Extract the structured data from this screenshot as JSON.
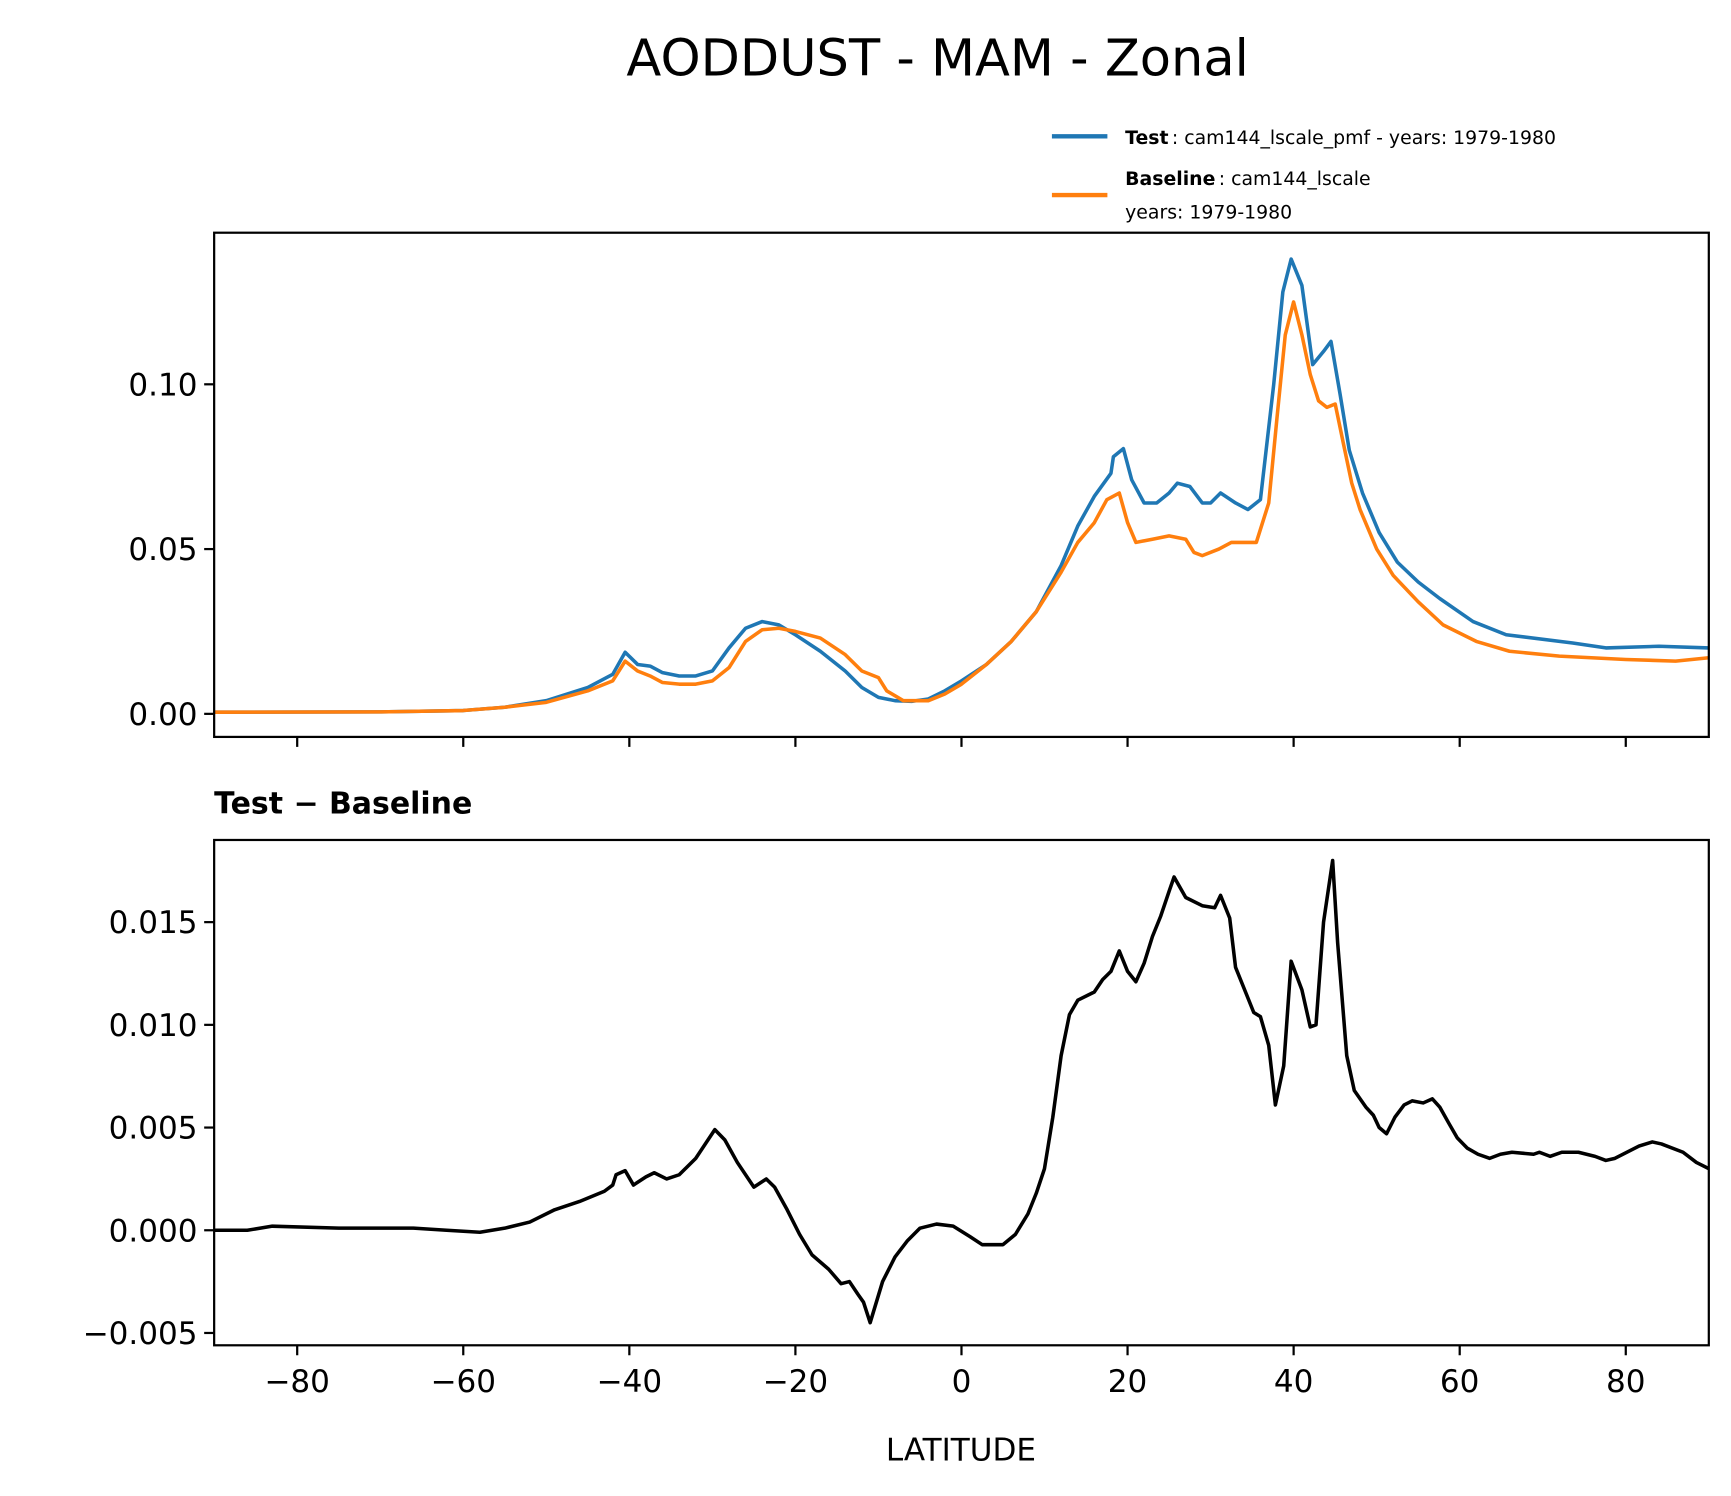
{
  "chart_data": [
    {
      "type": "line",
      "title": "AODDUST - MAM - Zonal",
      "xlabel": "",
      "ylabel": "",
      "xlim": [
        -90,
        90
      ],
      "ylim": [
        -0.007,
        0.146
      ],
      "xticks": [
        -80,
        -60,
        -40,
        -20,
        0,
        20,
        40,
        60,
        80
      ],
      "yticks": [
        0.0,
        0.05,
        0.1
      ],
      "ytick_labels": [
        "0.00",
        "0.05",
        "0.10"
      ],
      "legend": {
        "placement": "above-right",
        "entries": [
          {
            "bold": "Test",
            "text": ": cam144_lscale_pmf - years: 1979-1980",
            "text2": ""
          },
          {
            "bold": "Baseline",
            "text": ": cam144_lscale",
            "text2": "years: 1979-1980"
          }
        ]
      },
      "series": [
        {
          "name": "Test",
          "color": "#1f77b4",
          "x": [
            -90,
            -70,
            -60,
            -55,
            -50,
            -45,
            -42,
            -40.5,
            -39,
            -37.5,
            -36,
            -34,
            -32,
            -30,
            -28,
            -26,
            -24,
            -22,
            -20,
            -17,
            -14,
            -12,
            -10,
            -8,
            -6,
            -4,
            -2,
            0,
            3,
            6,
            9,
            12,
            14,
            16,
            18,
            18.3,
            19.5,
            20.5,
            22,
            23.5,
            25,
            26,
            27.5,
            29,
            30,
            31.2,
            33,
            34.5,
            36,
            37.6,
            38.7,
            39.7,
            41,
            42.3,
            43.6,
            44.5,
            45.6,
            46.7,
            48.3,
            50.3,
            52.5,
            55,
            57.6,
            61.6,
            65.6,
            73.6,
            77.6,
            84,
            90
          ],
          "y": [
            0.0005,
            0.0006,
            0.001,
            0.002,
            0.004,
            0.008,
            0.012,
            0.0187,
            0.015,
            0.0145,
            0.0125,
            0.0115,
            0.0115,
            0.013,
            0.02,
            0.026,
            0.028,
            0.027,
            0.024,
            0.019,
            0.013,
            0.008,
            0.005,
            0.004,
            0.0038,
            0.0045,
            0.007,
            0.01,
            0.015,
            0.022,
            0.031,
            0.045,
            0.057,
            0.066,
            0.073,
            0.078,
            0.0805,
            0.071,
            0.064,
            0.064,
            0.067,
            0.07,
            0.069,
            0.064,
            0.064,
            0.067,
            0.064,
            0.062,
            0.065,
            0.1,
            0.128,
            0.138,
            0.13,
            0.106,
            0.11,
            0.113,
            0.097,
            0.08,
            0.067,
            0.055,
            0.046,
            0.04,
            0.035,
            0.028,
            0.024,
            0.0215,
            0.02,
            0.0205,
            0.02
          ]
        },
        {
          "name": "Baseline",
          "color": "#ff7f0e",
          "x": [
            -90,
            -70,
            -60,
            -55,
            -50,
            -45,
            -42,
            -40.5,
            -39,
            -37.5,
            -36,
            -34,
            -32,
            -30,
            -28,
            -26,
            -24,
            -22,
            -20,
            -17,
            -14,
            -12,
            -10,
            -9,
            -7,
            -4,
            -2,
            0,
            3,
            6,
            9,
            12,
            14,
            16,
            17.5,
            19,
            20,
            21,
            23,
            25,
            27,
            28,
            29,
            31,
            32.5,
            34,
            35.5,
            37,
            38,
            39,
            40,
            41,
            42,
            43,
            44,
            45,
            46,
            47,
            48,
            50,
            52,
            55,
            58,
            62,
            66,
            72,
            80,
            86,
            90
          ],
          "y": [
            0.0005,
            0.0006,
            0.001,
            0.002,
            0.0035,
            0.007,
            0.01,
            0.016,
            0.013,
            0.0115,
            0.0095,
            0.009,
            0.009,
            0.01,
            0.014,
            0.022,
            0.0255,
            0.026,
            0.025,
            0.023,
            0.018,
            0.013,
            0.011,
            0.007,
            0.004,
            0.004,
            0.006,
            0.009,
            0.015,
            0.022,
            0.031,
            0.043,
            0.052,
            0.058,
            0.065,
            0.067,
            0.058,
            0.052,
            0.053,
            0.054,
            0.053,
            0.049,
            0.048,
            0.05,
            0.052,
            0.052,
            0.052,
            0.064,
            0.09,
            0.115,
            0.125,
            0.115,
            0.103,
            0.095,
            0.093,
            0.094,
            0.082,
            0.07,
            0.062,
            0.05,
            0.042,
            0.034,
            0.027,
            0.022,
            0.019,
            0.0175,
            0.0165,
            0.016,
            0.017
          ]
        }
      ]
    },
    {
      "type": "line",
      "title": "Test − Baseline",
      "xlabel": "LATITUDE",
      "ylabel": "",
      "xlim": [
        -90,
        90
      ],
      "ylim": [
        -0.0056,
        0.019
      ],
      "xticks": [
        -80,
        -60,
        -40,
        -20,
        0,
        20,
        40,
        60,
        80
      ],
      "xtick_labels": [
        "−80",
        "−60",
        "−40",
        "−20",
        "0",
        "20",
        "40",
        "60",
        "80"
      ],
      "yticks": [
        -0.005,
        0.0,
        0.005,
        0.01,
        0.015
      ],
      "ytick_labels": [
        "−0.005",
        "0.000",
        "0.005",
        "0.010",
        "0.015"
      ],
      "series": [
        {
          "name": "Test - Baseline",
          "color": "#000000",
          "x": [
            -90,
            -86,
            -83,
            -75,
            -66,
            -62,
            -58,
            -55,
            -52,
            -49,
            -46,
            -43,
            -42,
            -41.6,
            -40.5,
            -39.5,
            -38,
            -37,
            -35.5,
            -34,
            -32,
            -29.7,
            -28.5,
            -27,
            -25,
            -23.5,
            -22.5,
            -21,
            -19.5,
            -18,
            -16,
            -14.5,
            -13.5,
            -12.5,
            -11.8,
            -11,
            -9.5,
            -8,
            -6.5,
            -5,
            -3,
            -1,
            1,
            2.5,
            5,
            6.5,
            8,
            9,
            10,
            11,
            12,
            13,
            14,
            16,
            17,
            18,
            19,
            20,
            21,
            22,
            23,
            24,
            25,
            25.6,
            27,
            29,
            30.5,
            31.2,
            32.3,
            33,
            34.3,
            35.2,
            36,
            37,
            37.8,
            38.8,
            39.7,
            41,
            42,
            42.7,
            43.6,
            44.7,
            45.3,
            46.4,
            47.3,
            48.7,
            49.6,
            50.3,
            51.2,
            52.2,
            53.3,
            54.3,
            55.6,
            56.7,
            57.6,
            58.7,
            59.7,
            60.9,
            62.2,
            63.6,
            64.9,
            66.3,
            68.9,
            69.6,
            70.9,
            72.3,
            74.3,
            76.3,
            77.6,
            78.7,
            81.6,
            83.2,
            84.3,
            86.9,
            88.5,
            90
          ],
          "y": [
            0,
            0,
            0.0002,
            0.0001,
            0.0001,
            0,
            -0.0001,
            0.0001,
            0.0004,
            0.001,
            0.0014,
            0.0019,
            0.0022,
            0.0027,
            0.0029,
            0.0022,
            0.0026,
            0.0028,
            0.0025,
            0.0027,
            0.0035,
            0.0049,
            0.0044,
            0.0033,
            0.0021,
            0.0025,
            0.0021,
            0.001,
            -0.0002,
            -0.0012,
            -0.0019,
            -0.0026,
            -0.0025,
            -0.0031,
            -0.0035,
            -0.0045,
            -0.0025,
            -0.0013,
            -0.0005,
            0.0001,
            0.0003,
            0.0002,
            -0.0003,
            -0.0007,
            -0.0007,
            -0.0002,
            0.0008,
            0.0018,
            0.003,
            0.0055,
            0.0085,
            0.0105,
            0.0112,
            0.0116,
            0.0122,
            0.0126,
            0.0136,
            0.0126,
            0.0121,
            0.013,
            0.0143,
            0.0153,
            0.0165,
            0.0172,
            0.0162,
            0.0158,
            0.0157,
            0.0163,
            0.0152,
            0.0128,
            0.0115,
            0.0106,
            0.0104,
            0.009,
            0.0061,
            0.008,
            0.0131,
            0.0117,
            0.0099,
            0.01,
            0.015,
            0.018,
            0.014,
            0.0085,
            0.0068,
            0.006,
            0.0056,
            0.005,
            0.0047,
            0.0055,
            0.0061,
            0.0063,
            0.0062,
            0.0064,
            0.006,
            0.0052,
            0.0045,
            0.004,
            0.0037,
            0.0035,
            0.0037,
            0.0038,
            0.0037,
            0.0038,
            0.0036,
            0.0038,
            0.0038,
            0.0036,
            0.0034,
            0.0035,
            0.0041,
            0.0043,
            0.0042,
            0.0038,
            0.0033,
            0.003
          ]
        }
      ]
    }
  ]
}
